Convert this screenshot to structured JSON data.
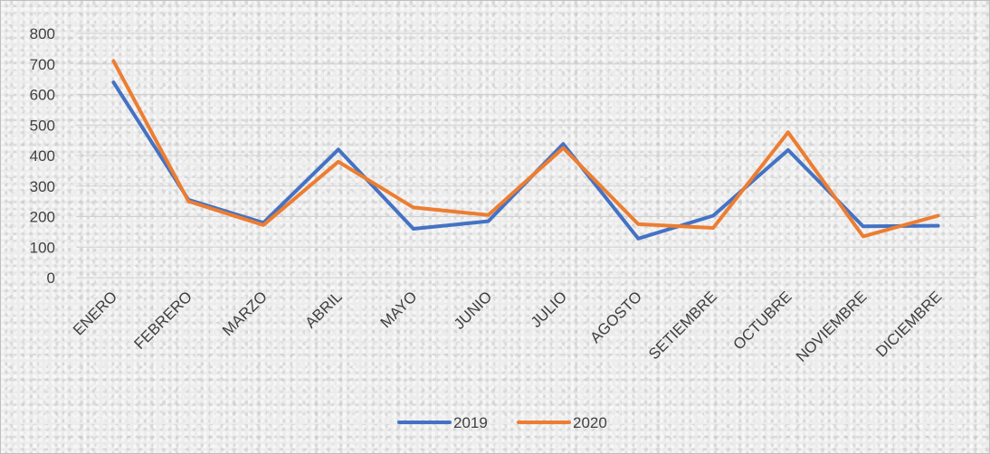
{
  "chart_data": {
    "type": "line",
    "categories": [
      "ENERO",
      "FEBRERO",
      "MARZO",
      "ABRIL",
      "MAYO",
      "JUNIO",
      "JULIO",
      "AGOSTO",
      "SETIEMBRE",
      "OCTUBRE",
      "NOVIEMBRE",
      "DICIEMBRE"
    ],
    "series": [
      {
        "name": "2019",
        "color": "#4472c4",
        "values": [
          640,
          255,
          180,
          420,
          160,
          185,
          438,
          128,
          203,
          418,
          168,
          170
        ]
      },
      {
        "name": "2020",
        "color": "#ed7d31",
        "values": [
          710,
          250,
          172,
          380,
          230,
          205,
          425,
          175,
          163,
          476,
          135,
          203
        ]
      }
    ],
    "yticks": [
      "0",
      "100",
      "200",
      "300",
      "400",
      "500",
      "600",
      "700",
      "800"
    ],
    "ylim": [
      0,
      800
    ],
    "grid": true,
    "legend_position": "bottom"
  }
}
